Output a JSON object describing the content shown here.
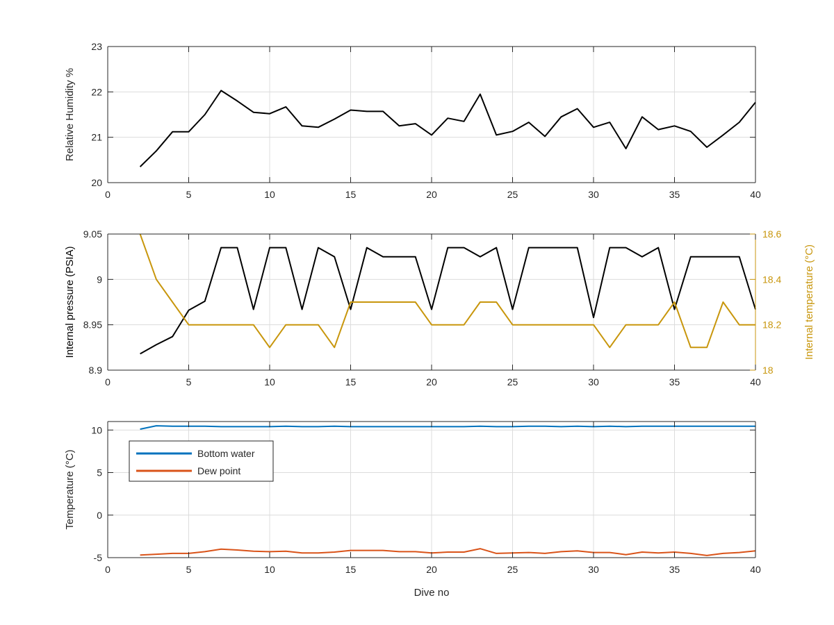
{
  "chart_data": [
    {
      "type": "line",
      "xlabel": "",
      "ylabel": "Relative Humidity %",
      "xlim": [
        0,
        40
      ],
      "ylim": [
        20,
        23
      ],
      "xticks": [
        "0",
        "5",
        "10",
        "15",
        "20",
        "25",
        "30",
        "35",
        "40"
      ],
      "yticks": [
        "20",
        "21",
        "22",
        "23"
      ],
      "grid": true,
      "series": [
        {
          "color": "#000000",
          "x": [
            2,
            3,
            4,
            5,
            6,
            7,
            8,
            9,
            10,
            11,
            12,
            13,
            14,
            15,
            16,
            17,
            18,
            19,
            20,
            21,
            22,
            23,
            24,
            25,
            26,
            27,
            28,
            29,
            30,
            31,
            32,
            33,
            34,
            35,
            36,
            37,
            38,
            39,
            40
          ],
          "y": [
            20.35,
            20.7,
            21.12,
            21.12,
            21.5,
            22.03,
            21.8,
            21.55,
            21.52,
            21.67,
            21.25,
            21.22,
            21.4,
            21.6,
            21.57,
            21.57,
            21.25,
            21.3,
            21.05,
            21.42,
            21.35,
            21.95,
            21.05,
            21.13,
            21.33,
            21.02,
            21.45,
            21.63,
            21.22,
            21.33,
            20.75,
            21.45,
            21.17,
            21.25,
            21.13,
            20.78,
            21.05,
            21.33,
            21.77
          ]
        }
      ]
    },
    {
      "type": "line",
      "xlabel": "",
      "ylabel": "Internal pressure (PSIA)",
      "ylabel_right": "Internal temperature (°C)",
      "xlim": [
        0,
        40
      ],
      "ylim": [
        8.9,
        9.05
      ],
      "ylim_right": [
        18,
        18.6
      ],
      "xticks": [
        "0",
        "5",
        "10",
        "15",
        "20",
        "25",
        "30",
        "35",
        "40"
      ],
      "yticks": [
        "8.9",
        "8.95",
        "9",
        "9.05"
      ],
      "yticks_right": [
        "18",
        "18.2",
        "18.4",
        "18.6"
      ],
      "grid": true,
      "series": [
        {
          "axis": "left",
          "color": "#000000",
          "x": [
            2,
            3,
            4,
            5,
            6,
            7,
            8,
            9,
            10,
            11,
            12,
            13,
            14,
            15,
            16,
            17,
            18,
            19,
            20,
            21,
            22,
            23,
            24,
            25,
            26,
            27,
            28,
            29,
            30,
            31,
            32,
            33,
            34,
            35,
            36,
            37,
            38,
            39,
            40
          ],
          "y": [
            8.918,
            8.928,
            8.937,
            8.966,
            8.976,
            9.035,
            9.035,
            8.967,
            9.035,
            9.035,
            8.967,
            9.035,
            9.025,
            8.967,
            9.035,
            9.025,
            9.025,
            9.025,
            8.967,
            9.035,
            9.035,
            9.025,
            9.035,
            8.967,
            9.035,
            9.035,
            9.035,
            9.035,
            8.958,
            9.035,
            9.035,
            9.025,
            9.035,
            8.967,
            9.025,
            9.025,
            9.025,
            9.025,
            8.967
          ]
        },
        {
          "axis": "right",
          "color": "#c8960c",
          "x": [
            2,
            3,
            4,
            5,
            6,
            7,
            8,
            9,
            10,
            11,
            12,
            13,
            14,
            15,
            16,
            17,
            18,
            19,
            20,
            21,
            22,
            23,
            24,
            25,
            26,
            27,
            28,
            29,
            30,
            31,
            32,
            33,
            34,
            35,
            36,
            37,
            38,
            39,
            40
          ],
          "y": [
            18.6,
            18.4,
            18.3,
            18.2,
            18.2,
            18.2,
            18.2,
            18.2,
            18.1,
            18.2,
            18.2,
            18.2,
            18.1,
            18.3,
            18.3,
            18.3,
            18.3,
            18.3,
            18.2,
            18.2,
            18.2,
            18.3,
            18.3,
            18.2,
            18.2,
            18.2,
            18.2,
            18.2,
            18.2,
            18.1,
            18.2,
            18.2,
            18.2,
            18.3,
            18.1,
            18.1,
            18.3,
            18.2,
            18.2
          ]
        }
      ]
    },
    {
      "type": "line",
      "xlabel": "Dive no",
      "ylabel": "Temperature (°C)",
      "xlim": [
        0,
        40
      ],
      "ylim": [
        -5,
        11
      ],
      "xticks": [
        "0",
        "5",
        "10",
        "15",
        "20",
        "25",
        "30",
        "35",
        "40"
      ],
      "yticks": [
        "-5",
        "0",
        "5",
        "10"
      ],
      "grid": true,
      "legend": "top-left",
      "series": [
        {
          "name": "Bottom water",
          "color": "#0072bd",
          "x": [
            2,
            3,
            4,
            5,
            6,
            7,
            8,
            9,
            10,
            11,
            12,
            13,
            14,
            15,
            16,
            17,
            18,
            19,
            20,
            21,
            22,
            23,
            24,
            25,
            26,
            27,
            28,
            29,
            30,
            31,
            32,
            33,
            34,
            35,
            36,
            37,
            38,
            39,
            40
          ],
          "y": [
            10.1,
            10.5,
            10.45,
            10.45,
            10.45,
            10.4,
            10.4,
            10.4,
            10.4,
            10.45,
            10.4,
            10.4,
            10.45,
            10.4,
            10.4,
            10.4,
            10.4,
            10.4,
            10.4,
            10.4,
            10.4,
            10.45,
            10.4,
            10.4,
            10.45,
            10.45,
            10.4,
            10.45,
            10.4,
            10.45,
            10.4,
            10.45,
            10.45,
            10.45,
            10.45,
            10.45,
            10.45,
            10.45,
            10.45
          ]
        },
        {
          "name": "Dew point",
          "color": "#d95319",
          "x": [
            2,
            3,
            4,
            5,
            6,
            7,
            8,
            9,
            10,
            11,
            12,
            13,
            14,
            15,
            16,
            17,
            18,
            19,
            20,
            21,
            22,
            23,
            24,
            25,
            26,
            27,
            28,
            29,
            30,
            31,
            32,
            33,
            34,
            35,
            36,
            37,
            38,
            39,
            40
          ],
          "y": [
            -4.7,
            -4.6,
            -4.5,
            -4.5,
            -4.3,
            -4.0,
            -4.1,
            -4.25,
            -4.3,
            -4.25,
            -4.45,
            -4.45,
            -4.35,
            -4.15,
            -4.15,
            -4.15,
            -4.3,
            -4.3,
            -4.45,
            -4.35,
            -4.35,
            -3.95,
            -4.5,
            -4.45,
            -4.4,
            -4.5,
            -4.3,
            -4.2,
            -4.4,
            -4.4,
            -4.65,
            -4.35,
            -4.45,
            -4.35,
            -4.5,
            -4.75,
            -4.5,
            -4.4,
            -4.2
          ]
        }
      ]
    }
  ]
}
